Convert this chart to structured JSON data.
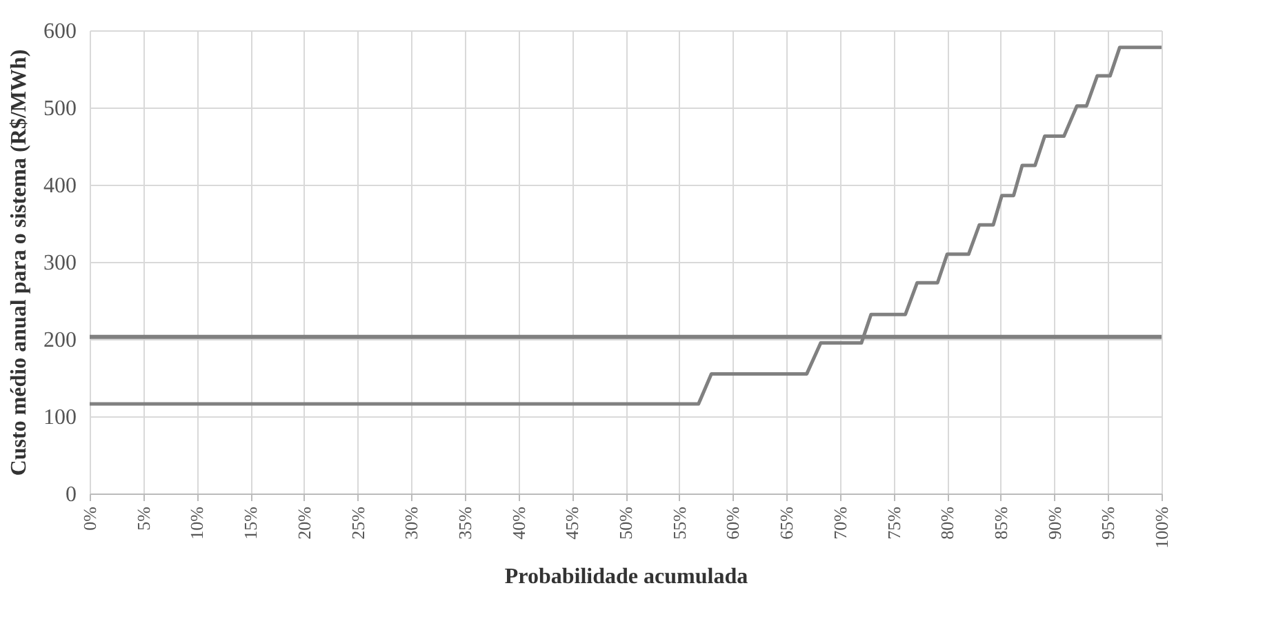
{
  "chart_data": {
    "type": "line",
    "xlabel": "Probabilidade acumulada",
    "ylabel": "Custo médio anual para o sistema (R$/MWh)",
    "xlim": [
      0,
      100
    ],
    "ylim": [
      0,
      600
    ],
    "xticks": [
      {
        "value": 0,
        "label": "0%"
      },
      {
        "value": 5,
        "label": "5%"
      },
      {
        "value": 10,
        "label": "10%"
      },
      {
        "value": 15,
        "label": "15%"
      },
      {
        "value": 20,
        "label": "20%"
      },
      {
        "value": 25,
        "label": "25%"
      },
      {
        "value": 30,
        "label": "30%"
      },
      {
        "value": 35,
        "label": "35%"
      },
      {
        "value": 40,
        "label": "40%"
      },
      {
        "value": 45,
        "label": "45%"
      },
      {
        "value": 50,
        "label": "50%"
      },
      {
        "value": 55,
        "label": "55%"
      },
      {
        "value": 60,
        "label": "60%"
      },
      {
        "value": 65,
        "label": "65%"
      },
      {
        "value": 70,
        "label": "70%"
      },
      {
        "value": 75,
        "label": "75%"
      },
      {
        "value": 80,
        "label": "80%"
      },
      {
        "value": 85,
        "label": "85%"
      },
      {
        "value": 90,
        "label": "90%"
      },
      {
        "value": 95,
        "label": "95%"
      },
      {
        "value": 100,
        "label": "100%"
      }
    ],
    "yticks": [
      0,
      100,
      200,
      300,
      400,
      500,
      600
    ],
    "grid": true,
    "marker": "none",
    "line_style": "solid",
    "series": [
      {
        "color": "#808080",
        "x": [
          0,
          56.8,
          58,
          66.9,
          68.2,
          72,
          72.9,
          76.1,
          77.2,
          79.1,
          80,
          82,
          83,
          84.3,
          85.1,
          86.2,
          87,
          88.2,
          89.1,
          90.9,
          92.1,
          93,
          94,
          95.2,
          96.1,
          100
        ],
        "values": [
          116,
          116,
          155,
          155,
          195,
          195,
          232,
          232,
          273,
          273,
          310,
          310,
          348,
          348,
          386,
          386,
          425,
          425,
          463,
          463,
          502,
          502,
          541,
          541,
          578,
          578
        ]
      },
      {
        "color": "#808080",
        "x": [
          0,
          100
        ],
        "values": [
          203,
          203
        ]
      }
    ]
  }
}
